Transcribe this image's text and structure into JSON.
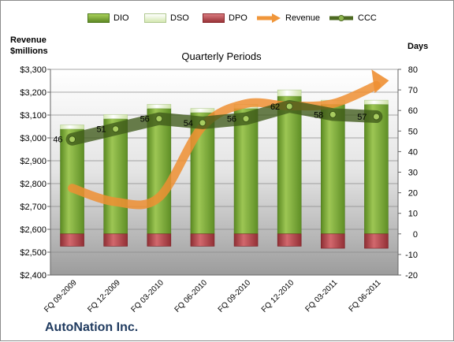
{
  "legend": {
    "dio": "DIO",
    "dso": "DSO",
    "dpo": "DPO",
    "revenue": "Revenue",
    "ccc": "CCC"
  },
  "axis": {
    "left_title_line1": "Revenue",
    "left_title_line2": "$millions",
    "right_title": "Days",
    "plot_title": "Quarterly Periods"
  },
  "company": "AutoNation Inc.",
  "colors": {
    "dio": "#7aa33a",
    "dso": "#dfeec3",
    "dpo": "#b0454a",
    "revenue": "#f0a040",
    "ccc": "#4d6a22"
  },
  "chart_data": {
    "type": "bar",
    "title": "Quarterly Periods",
    "categories": [
      "FQ 09-2009",
      "FQ 12-2009",
      "FQ 03-2010",
      "FQ 06-2010",
      "FQ 09-2010",
      "FQ 12-2010",
      "FQ 03-2011",
      "FQ 06-2011"
    ],
    "left_axis": {
      "label": "Revenue $millions",
      "min": 2400,
      "max": 3300,
      "ticks": [
        "$2,400",
        "$2,500",
        "$2,600",
        "$2,700",
        "$2,800",
        "$2,900",
        "$3,000",
        "$3,100",
        "$3,200",
        "$3,300"
      ]
    },
    "right_axis": {
      "label": "Days",
      "min": -20,
      "max": 80,
      "ticks": [
        "-20",
        "-10",
        "0",
        "10",
        "20",
        "30",
        "40",
        "50",
        "60",
        "70",
        "80"
      ]
    },
    "series": [
      {
        "name": "DIO",
        "axis": "right",
        "kind": "bar",
        "values": [
          51,
          56,
          61,
          59,
          61,
          67,
          63,
          63
        ]
      },
      {
        "name": "DSO",
        "axis": "right",
        "kind": "bar-stacked",
        "values": [
          2,
          2,
          2,
          2,
          2,
          3,
          2,
          2
        ]
      },
      {
        "name": "DPO",
        "axis": "right",
        "kind": "bar-negative",
        "values": [
          -6,
          -6,
          -6,
          -6,
          -6,
          -6,
          -7,
          -7
        ]
      },
      {
        "name": "Revenue",
        "axis": "left",
        "kind": "line",
        "values": [
          2780,
          2720,
          2740,
          3050,
          3150,
          3140,
          3150,
          3230
        ]
      },
      {
        "name": "CCC",
        "axis": "right",
        "kind": "line",
        "values": [
          46,
          51,
          56,
          54,
          56,
          62,
          58,
          57
        ]
      }
    ],
    "ccc_labels": [
      "46",
      "51",
      "56",
      "54",
      "56",
      "62",
      "58",
      "57"
    ],
    "grid": true,
    "legend_position": "top"
  }
}
